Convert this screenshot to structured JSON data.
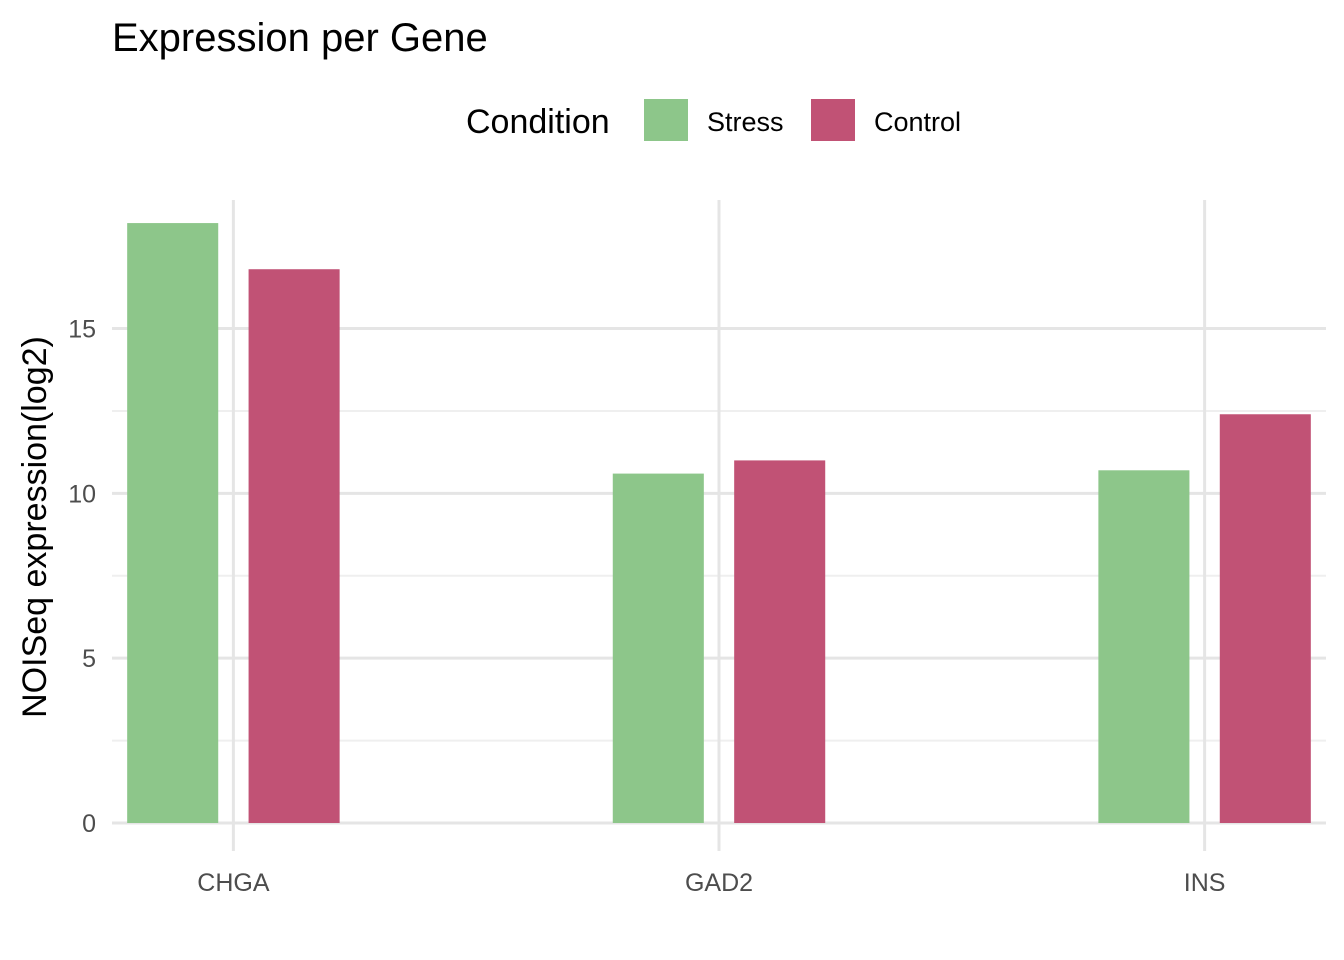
{
  "chart_data": {
    "type": "bar",
    "title": "Expression per Gene",
    "xlabel": "",
    "ylabel": "NOISeq expression(log2)",
    "categories": [
      "CHGA",
      "GAD2",
      "INS"
    ],
    "legend": {
      "title": "Condition",
      "position": "top"
    },
    "series": [
      {
        "name": "Stress",
        "color": "#8dc68a",
        "values": [
          18.2,
          10.6,
          10.7
        ]
      },
      {
        "name": "Control",
        "color": "#c15275",
        "values": [
          16.8,
          11.0,
          12.4
        ]
      }
    ],
    "ylim": [
      0,
      18.9
    ],
    "yticks": [
      0,
      5,
      10,
      15
    ],
    "ytick_labels": [
      "0",
      "5",
      "10",
      "15"
    ],
    "grid": true
  }
}
